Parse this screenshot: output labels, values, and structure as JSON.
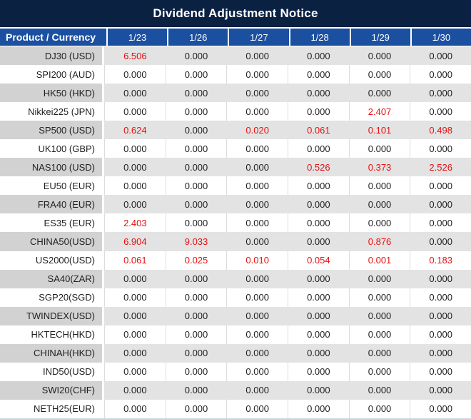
{
  "title": "Dividend Adjustment Notice",
  "colors": {
    "title_bg": "#0b2142",
    "header_bg": "#1b50a1",
    "stripe_product": "#d2d2d2",
    "stripe_value": "#e3e3e3",
    "negative_red": "#e81010",
    "text": "#1f1f1f"
  },
  "table": {
    "header": [
      "Product / Currency",
      "1/23",
      "1/26",
      "1/27",
      "1/28",
      "1/29",
      "1/30"
    ],
    "rows": [
      {
        "product": "DJ30 (USD)",
        "values": [
          "6.506",
          "0.000",
          "0.000",
          "0.000",
          "0.000",
          "0.000"
        ],
        "red": [
          0
        ]
      },
      {
        "product": "SPI200 (AUD)",
        "values": [
          "0.000",
          "0.000",
          "0.000",
          "0.000",
          "0.000",
          "0.000"
        ],
        "red": []
      },
      {
        "product": "HK50 (HKD)",
        "values": [
          "0.000",
          "0.000",
          "0.000",
          "0.000",
          "0.000",
          "0.000"
        ],
        "red": []
      },
      {
        "product": "Nikkei225 (JPN)",
        "values": [
          "0.000",
          "0.000",
          "0.000",
          "0.000",
          "2.407",
          "0.000"
        ],
        "red": [
          4
        ]
      },
      {
        "product": "SP500 (USD)",
        "values": [
          "0.624",
          "0.000",
          "0.020",
          "0.061",
          "0.101",
          "0.498"
        ],
        "red": [
          0,
          2,
          3,
          4,
          5
        ]
      },
      {
        "product": "UK100 (GBP)",
        "values": [
          "0.000",
          "0.000",
          "0.000",
          "0.000",
          "0.000",
          "0.000"
        ],
        "red": []
      },
      {
        "product": "NAS100 (USD)",
        "values": [
          "0.000",
          "0.000",
          "0.000",
          "0.526",
          "0.373",
          "2.526"
        ],
        "red": [
          3,
          4,
          5
        ]
      },
      {
        "product": "EU50 (EUR)",
        "values": [
          "0.000",
          "0.000",
          "0.000",
          "0.000",
          "0.000",
          "0.000"
        ],
        "red": []
      },
      {
        "product": "FRA40 (EUR)",
        "values": [
          "0.000",
          "0.000",
          "0.000",
          "0.000",
          "0.000",
          "0.000"
        ],
        "red": []
      },
      {
        "product": "ES35 (EUR)",
        "values": [
          "2.403",
          "0.000",
          "0.000",
          "0.000",
          "0.000",
          "0.000"
        ],
        "red": [
          0
        ]
      },
      {
        "product": "CHINA50(USD)",
        "values": [
          "6.904",
          "9.033",
          "0.000",
          "0.000",
          "0.876",
          "0.000"
        ],
        "red": [
          0,
          1,
          4
        ]
      },
      {
        "product": "US2000(USD)",
        "values": [
          "0.061",
          "0.025",
          "0.010",
          "0.054",
          "0.001",
          "0.183"
        ],
        "red": [
          0,
          1,
          2,
          3,
          4,
          5
        ]
      },
      {
        "product": "SA40(ZAR)",
        "values": [
          "0.000",
          "0.000",
          "0.000",
          "0.000",
          "0.000",
          "0.000"
        ],
        "red": []
      },
      {
        "product": "SGP20(SGD)",
        "values": [
          "0.000",
          "0.000",
          "0.000",
          "0.000",
          "0.000",
          "0.000"
        ],
        "red": []
      },
      {
        "product": "TWINDEX(USD)",
        "values": [
          "0.000",
          "0.000",
          "0.000",
          "0.000",
          "0.000",
          "0.000"
        ],
        "red": []
      },
      {
        "product": "HKTECH(HKD)",
        "values": [
          "0.000",
          "0.000",
          "0.000",
          "0.000",
          "0.000",
          "0.000"
        ],
        "red": []
      },
      {
        "product": "CHINAH(HKD)",
        "values": [
          "0.000",
          "0.000",
          "0.000",
          "0.000",
          "0.000",
          "0.000"
        ],
        "red": []
      },
      {
        "product": "IND50(USD)",
        "values": [
          "0.000",
          "0.000",
          "0.000",
          "0.000",
          "0.000",
          "0.000"
        ],
        "red": []
      },
      {
        "product": "SWI20(CHF)",
        "values": [
          "0.000",
          "0.000",
          "0.000",
          "0.000",
          "0.000",
          "0.000"
        ],
        "red": []
      },
      {
        "product": "NETH25(EUR)",
        "values": [
          "0.000",
          "0.000",
          "0.000",
          "0.000",
          "0.000",
          "0.000"
        ],
        "red": []
      }
    ]
  }
}
